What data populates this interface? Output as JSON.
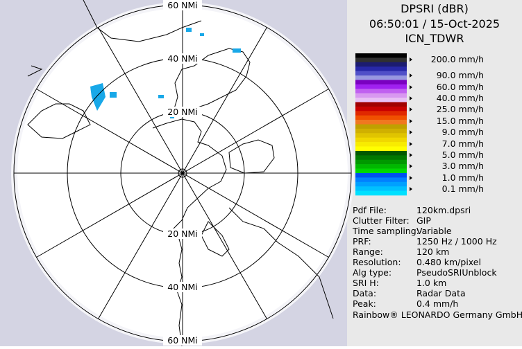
{
  "header": {
    "title": "DPSRI (dBR)",
    "time": "06:50:01 / 15-Oct-2025",
    "site": "ICN_TDWR"
  },
  "rings": {
    "top": [
      "60 NMi",
      "40 NMi",
      "20 NMi"
    ],
    "bottom": [
      "20 NMi",
      "40 NMi",
      "60 NMi"
    ]
  },
  "legend": [
    "200.0 mm/h",
    "90.0 mm/h",
    "60.0 mm/h",
    "40.0 mm/h",
    "25.0 mm/h",
    "15.0 mm/h",
    "9.0 mm/h",
    "7.0 mm/h",
    "5.0 mm/h",
    "3.0 mm/h",
    "1.0 mm/h",
    "0.1 mm/h"
  ],
  "info": [
    [
      "Pdf File:",
      "120km.dpsri"
    ],
    [
      "Clutter Filter:",
      "GIP"
    ],
    [
      "Time sampling:",
      "Variable"
    ],
    [
      "PRF:",
      "1250 Hz / 1000 Hz"
    ],
    [
      "Range:",
      "120 km"
    ],
    [
      "Resolution:",
      "0.480 km/pixel"
    ],
    [
      "Alg type:",
      "PseudoSRIUnblock"
    ],
    [
      "SRI H:",
      "1.0 km"
    ],
    [
      "Data:",
      "Radar Data"
    ],
    [
      "Peak:",
      "0.4 mm/h"
    ]
  ],
  "footer": "Rainbow® LEONARDO Germany GmbH"
}
